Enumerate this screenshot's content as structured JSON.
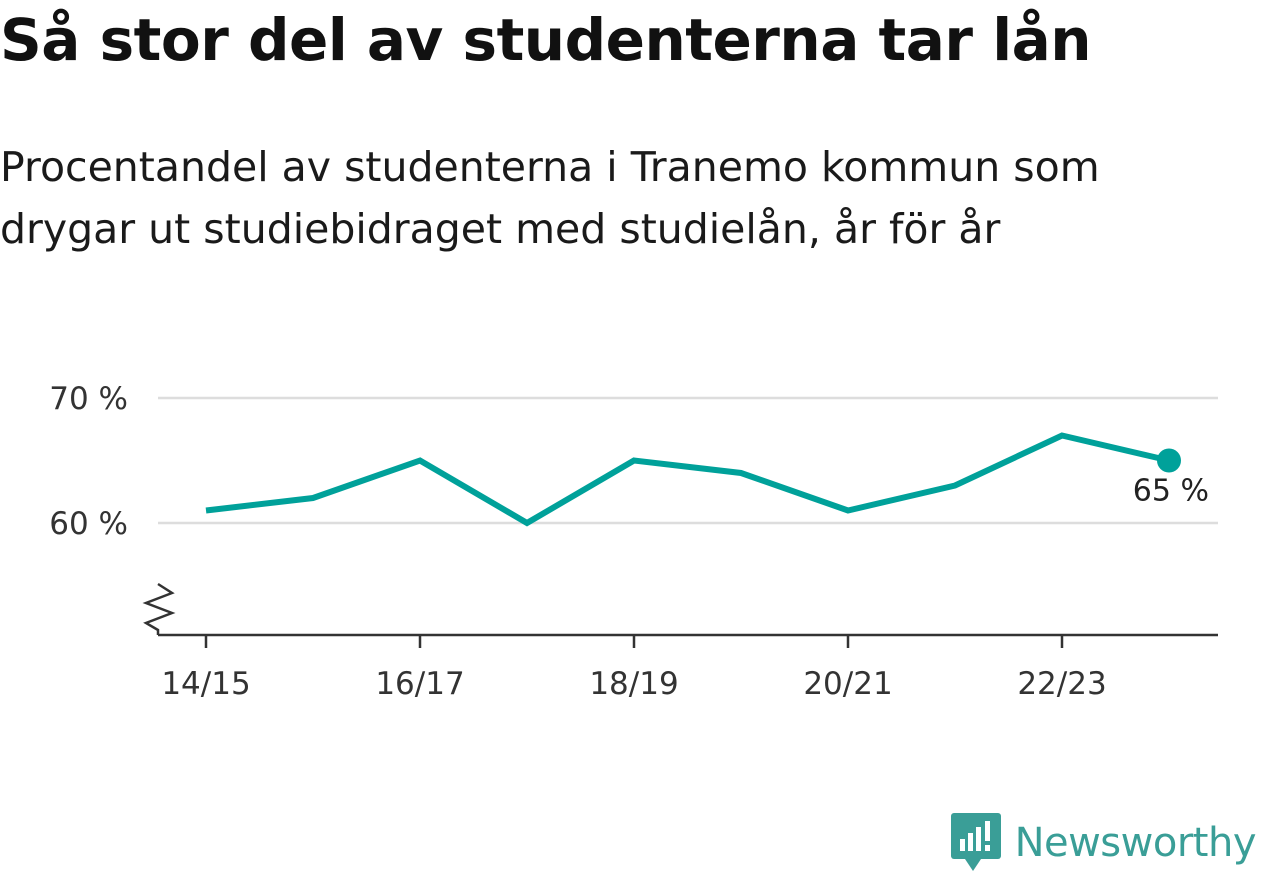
{
  "title": "Så stor del av studenterna tar lån",
  "subtitle": "Procentandel av studenterna i Tranemo kommun som drygar ut studiebidraget med studielån, år för år",
  "brand": {
    "name": "Newsworthy",
    "icon": "newsworthy-logo-icon",
    "color": "#3a9e97"
  },
  "colors": {
    "line": "#00a19a",
    "grid": "#dddddd",
    "axis": "#333333"
  },
  "chart_data": {
    "type": "line",
    "x": [
      "14/15",
      "15/16",
      "16/17",
      "17/18",
      "18/19",
      "19/20",
      "20/21",
      "21/22",
      "22/23",
      "23/24"
    ],
    "tick_labels": [
      "14/15",
      "16/17",
      "18/19",
      "20/21",
      "22/23"
    ],
    "series": [
      {
        "values": [
          61,
          62,
          65,
          60,
          65,
          64,
          61,
          63,
          67,
          65
        ]
      }
    ],
    "y_ticks": [
      {
        "value": 60,
        "label": "60 %"
      },
      {
        "value": 70,
        "label": "70 %"
      }
    ],
    "last_value_label": "65 %",
    "ylim": [
      60,
      70
    ],
    "axis_break": true,
    "grid": true
  }
}
